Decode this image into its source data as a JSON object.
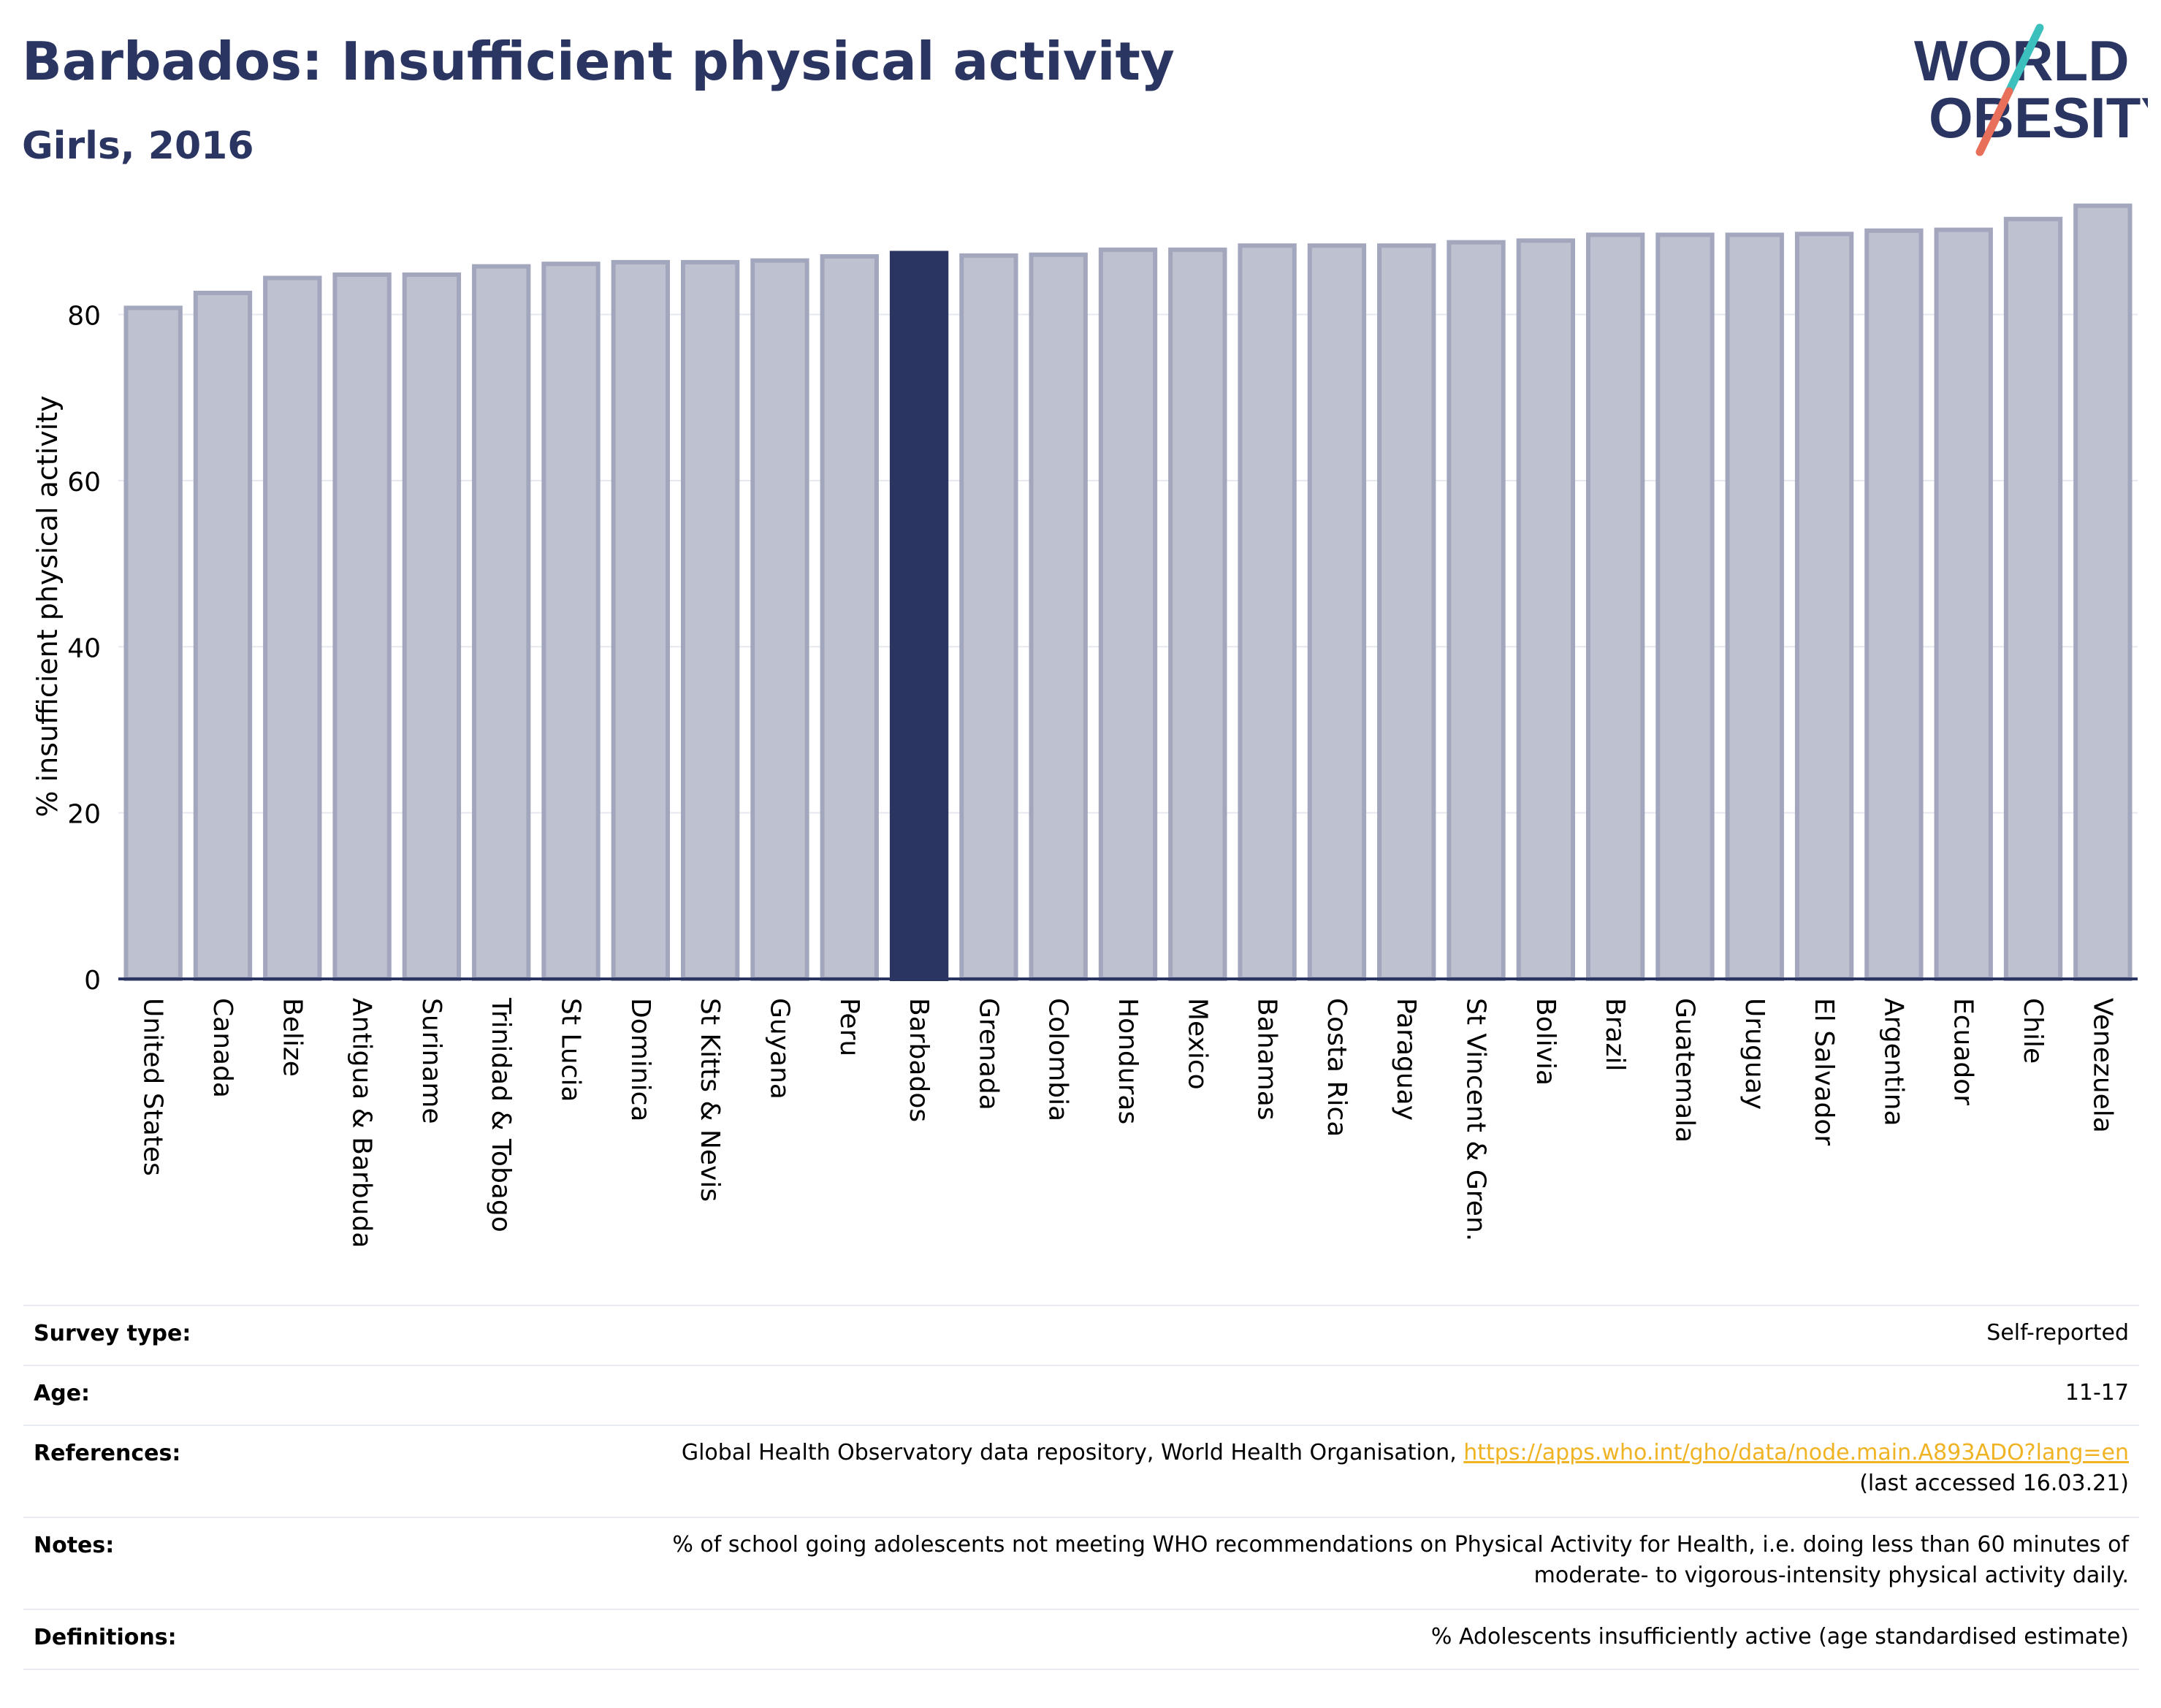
{
  "header": {
    "title": "Barbados: Insufficient physical activity",
    "subtitle": "Girls, 2016"
  },
  "logo": {
    "line1": "WORLD",
    "line2": "OBESITY"
  },
  "colors": {
    "highlight": "#2b3561",
    "bar_fill": "#bec1cf",
    "bar_stroke": "#a2a7bd",
    "title": "#2b3561",
    "link": "#f0b323"
  },
  "chart_data": {
    "type": "bar",
    "ylabel": "% insufficient physical activity",
    "ylim": [
      0,
      95
    ],
    "yticks": [
      0,
      20,
      40,
      60,
      80
    ],
    "grid": true,
    "highlight": "Barbados",
    "categories": [
      "United States",
      "Canada",
      "Belize",
      "Antigua & Barbuda",
      "Suriname",
      "Trinidad & Tobago",
      "St Lucia",
      "Dominica",
      "St Kitts & Nevis",
      "Guyana",
      "Peru",
      "Barbados",
      "Grenada",
      "Colombia",
      "Honduras",
      "Mexico",
      "Bahamas",
      "Costa Rica",
      "Paraguay",
      "St Vincent & Gren.",
      "Bolivia",
      "Brazil",
      "Guatemala",
      "Uruguay",
      "El Salvador",
      "Argentina",
      "Ecuador",
      "Chile",
      "Venezuela"
    ],
    "values": [
      80.8,
      82.6,
      84.4,
      84.8,
      84.8,
      85.8,
      86.1,
      86.3,
      86.3,
      86.5,
      87.0,
      87.4,
      87.1,
      87.2,
      87.8,
      87.8,
      88.3,
      88.3,
      88.3,
      88.7,
      88.9,
      89.6,
      89.6,
      89.6,
      89.7,
      90.1,
      90.2,
      91.5,
      93.1
    ]
  },
  "info": {
    "survey_type": {
      "label": "Survey type:",
      "value": "Self-reported"
    },
    "age": {
      "label": "Age:",
      "value": "11-17"
    },
    "references": {
      "label": "References:",
      "text": "Global Health Observatory data repository, World Health Organisation, ",
      "link": "https://apps.who.int/gho/data/node.main.A893ADO?lang=en",
      "suffix": "(last accessed 16.03.21)"
    },
    "notes": {
      "label": "Notes:",
      "line1": "% of school going adolescents not meeting WHO recommendations on Physical Activity for Health, i.e. doing less than 60 minutes of",
      "line2": "moderate- to vigorous-intensity physical activity daily."
    },
    "definitions": {
      "label": "Definitions:",
      "value": "% Adolescents insufficiently active (age standardised estimate)"
    }
  }
}
